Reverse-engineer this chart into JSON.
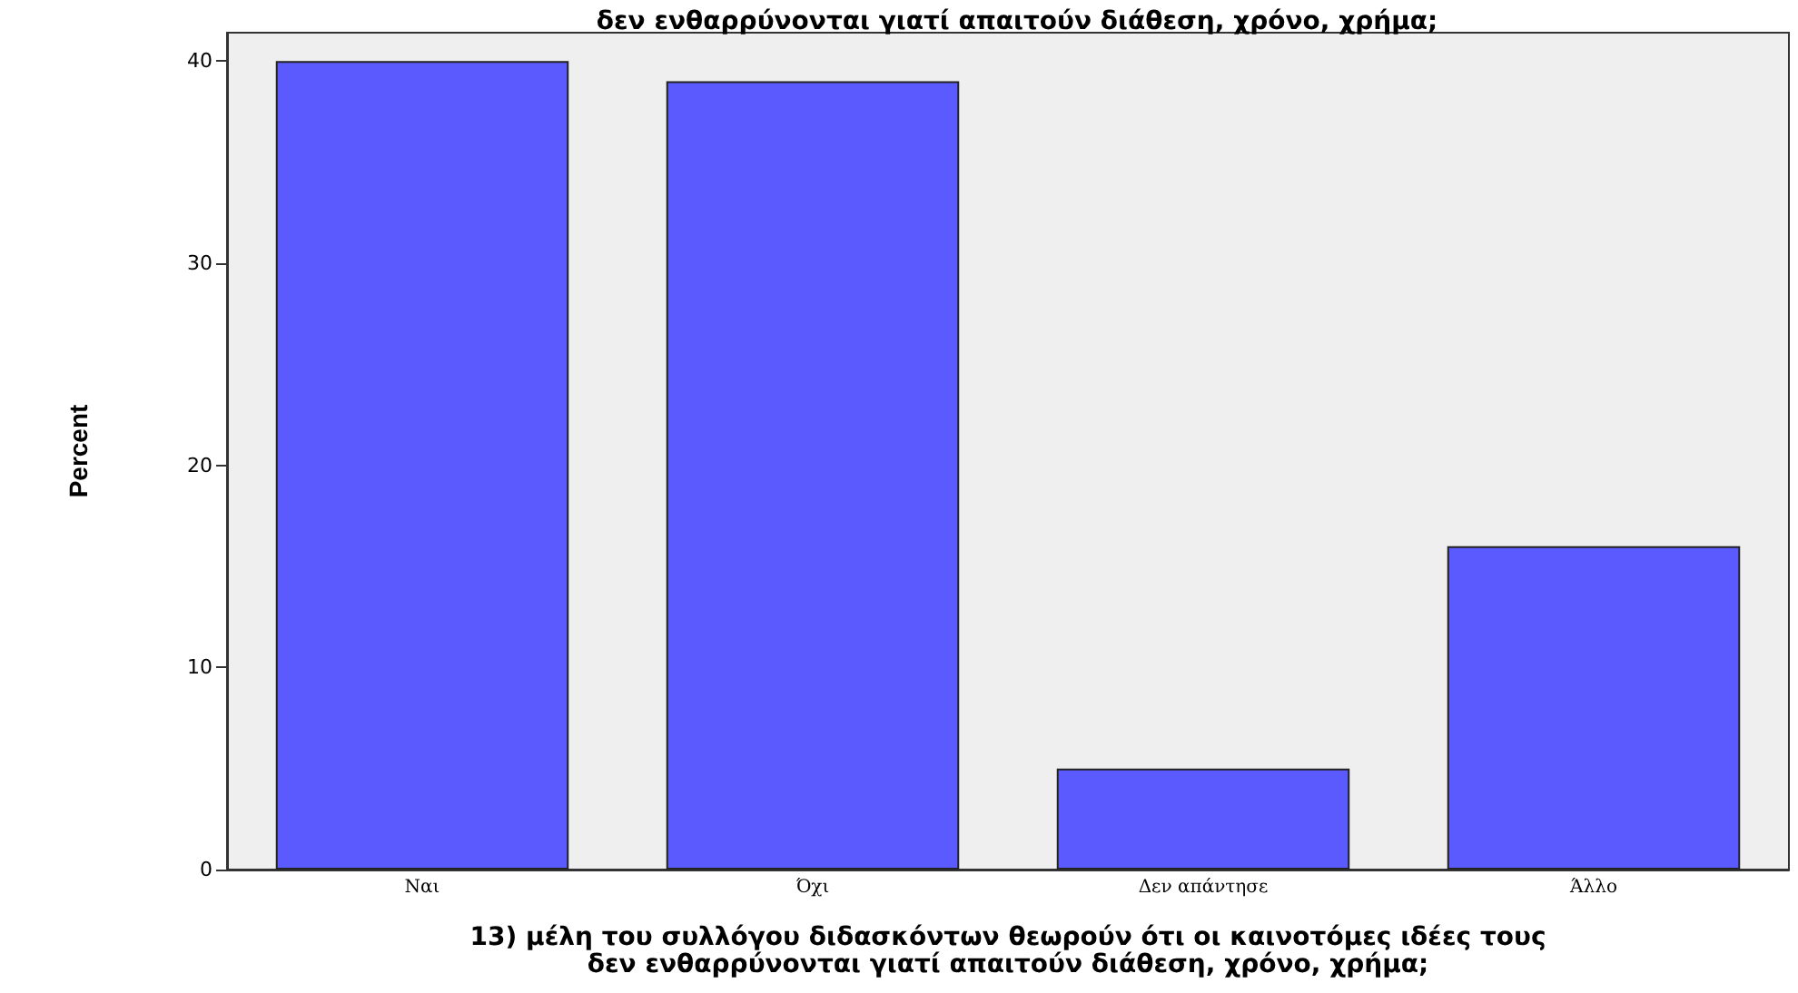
{
  "chart_data": {
    "type": "bar",
    "title": "δεν ενθαρρύνονται γιατί απαιτούν διάθεση, χρόνο, χρήμα;",
    "categories": [
      "Ναι",
      "Όχι",
      "Δεν απάντησε",
      "Άλλο"
    ],
    "values": [
      40,
      39,
      5,
      16
    ],
    "color": "#5a5aff",
    "xlabel": "13) μέλη του συλλόγου διδασκόντων θεωρούν ότι οι καινοτόμες ιδέες τους\nδεν ενθαρρύνονται γιατί απαιτούν διάθεση, χρόνο, χρήμα;",
    "ylabel": "Percent",
    "ylim": [
      0,
      41.4
    ],
    "yticks": [
      0,
      10,
      20,
      30,
      40
    ],
    "grid": false
  }
}
